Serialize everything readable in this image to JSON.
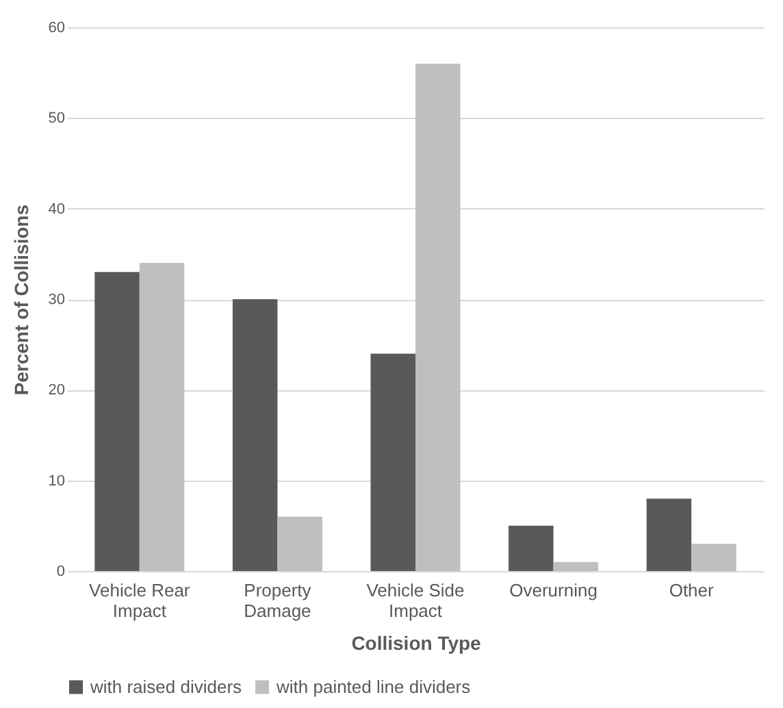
{
  "chart_data": {
    "type": "bar",
    "xlabel": "Collision Type",
    "ylabel": "Percent of Collisions",
    "categories": [
      "Vehicle Rear Impact",
      "Property Damage",
      "Vehicle Side Impact",
      "Overurning",
      "Other"
    ],
    "series": [
      {
        "name": "with raised dividers",
        "color": "#595959",
        "values": [
          33,
          30,
          24,
          5,
          8
        ]
      },
      {
        "name": "with painted line dividers",
        "color": "#bfbfbf",
        "values": [
          34,
          6,
          56,
          1,
          3
        ]
      }
    ],
    "ylim": [
      0,
      60
    ],
    "yticks": [
      0,
      10,
      20,
      30,
      40,
      50,
      60
    ],
    "grid": "y",
    "legend": "bottom"
  }
}
